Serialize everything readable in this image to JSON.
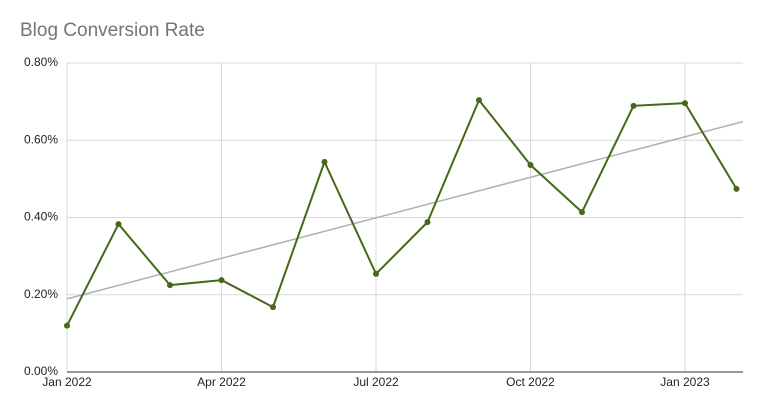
{
  "chart_data": {
    "type": "line",
    "title": "Blog Conversion Rate",
    "categories": [
      "Jan 2022",
      null,
      null,
      "Apr 2022",
      null,
      null,
      "Jul 2022",
      null,
      null,
      "Oct 2022",
      null,
      null,
      "Jan 2023",
      null
    ],
    "values": [
      0.12,
      0.383,
      0.225,
      0.238,
      0.168,
      0.544,
      0.254,
      0.388,
      0.704,
      0.536,
      0.414,
      0.689,
      0.696,
      0.474
    ],
    "color": "#45681a",
    "ylim": [
      0,
      0.8
    ],
    "yticks": [
      {
        "value": 0,
        "label": "0.00%"
      },
      {
        "value": 0.2,
        "label": "0.20%"
      },
      {
        "value": 0.4,
        "label": "0.40%"
      },
      {
        "value": 0.6,
        "label": "0.60%"
      },
      {
        "value": 0.8,
        "label": "0.80%"
      }
    ],
    "grid": true,
    "trendline": {
      "color": "#b0b0b0"
    }
  }
}
